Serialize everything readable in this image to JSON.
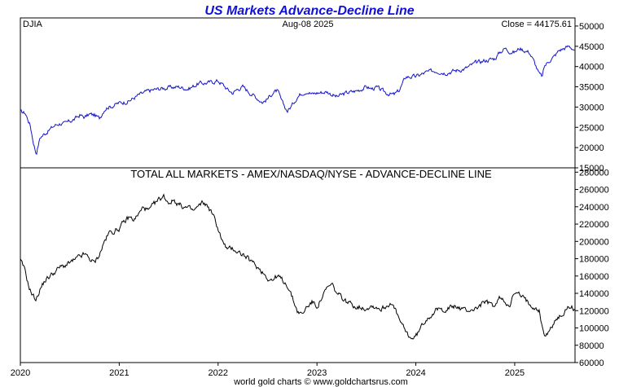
{
  "chart_data": [
    {
      "type": "line",
      "title": "US Markets Advance-Decline Line",
      "symbol": "DJIA",
      "date_label": "Aug-08  2025",
      "close_label": "Close = 44175.61",
      "line_color": "#1414c8",
      "x_range": [
        2020.0,
        2025.61
      ],
      "ylim": [
        15000,
        52000
      ],
      "yticks": [
        15000,
        20000,
        25000,
        30000,
        35000,
        40000,
        45000,
        50000
      ],
      "series": [
        {
          "name": "DJIA",
          "x": [
            2020.0,
            2020.05,
            2020.1,
            2020.13,
            2020.16,
            2020.2,
            2020.25,
            2020.3,
            2020.35,
            2020.4,
            2020.45,
            2020.5,
            2020.55,
            2020.6,
            2020.65,
            2020.7,
            2020.75,
            2020.8,
            2020.85,
            2020.88,
            2020.92,
            2021.0,
            2021.1,
            2021.2,
            2021.3,
            2021.4,
            2021.5,
            2021.6,
            2021.7,
            2021.8,
            2021.9,
            2022.0,
            2022.05,
            2022.1,
            2022.15,
            2022.2,
            2022.25,
            2022.3,
            2022.38,
            2022.45,
            2022.5,
            2022.55,
            2022.6,
            2022.65,
            2022.7,
            2022.75,
            2022.8,
            2022.85,
            2022.9,
            2022.95,
            2023.0,
            2023.1,
            2023.2,
            2023.3,
            2023.4,
            2023.5,
            2023.55,
            2023.6,
            2023.7,
            2023.78,
            2023.83,
            2023.9,
            2024.0,
            2024.1,
            2024.2,
            2024.3,
            2024.4,
            2024.5,
            2024.6,
            2024.7,
            2024.8,
            2024.85,
            2024.9,
            2024.95,
            2025.0,
            2025.05,
            2025.1,
            2025.15,
            2025.2,
            2025.25,
            2025.28,
            2025.3,
            2025.35,
            2025.4,
            2025.45,
            2025.5,
            2025.55,
            2025.61
          ],
          "values": [
            28800,
            28500,
            25500,
            21500,
            18500,
            22500,
            23500,
            24500,
            25500,
            26000,
            25800,
            26500,
            27000,
            28000,
            27500,
            28200,
            28000,
            27200,
            29500,
            30000,
            30200,
            31000,
            31500,
            33000,
            34000,
            34500,
            34800,
            35000,
            34500,
            35800,
            36000,
            36500,
            35500,
            34200,
            33500,
            34500,
            35000,
            34000,
            32500,
            31200,
            32000,
            33500,
            34000,
            31000,
            29000,
            30500,
            32500,
            33500,
            34000,
            33200,
            33500,
            33800,
            32500,
            33500,
            34000,
            35000,
            34500,
            34800,
            33500,
            33000,
            34000,
            37500,
            37500,
            38500,
            39000,
            38500,
            39000,
            39500,
            40800,
            41500,
            42000,
            43500,
            44500,
            43800,
            43500,
            44500,
            44000,
            43500,
            41000,
            38000,
            37500,
            40000,
            41500,
            42500,
            44000,
            44500,
            45000,
            44175
          ]
        }
      ]
    },
    {
      "type": "line",
      "title": "TOTAL ALL MARKETS - AMEX/NASDAQ/NYSE - ADVANCE-DECLINE LINE",
      "line_color": "#000000",
      "x_range": [
        2020.0,
        2025.61
      ],
      "ylim": [
        60000,
        285000
      ],
      "yticks": [
        60000,
        80000,
        100000,
        120000,
        140000,
        160000,
        180000,
        200000,
        220000,
        240000,
        260000,
        280000
      ],
      "xticks": [
        2020,
        2021,
        2022,
        2023,
        2024,
        2025
      ],
      "series": [
        {
          "name": "Advance-Decline Line",
          "x": [
            2020.0,
            2020.05,
            2020.08,
            2020.12,
            2020.16,
            2020.2,
            2020.25,
            2020.3,
            2020.35,
            2020.4,
            2020.45,
            2020.5,
            2020.55,
            2020.6,
            2020.65,
            2020.7,
            2020.75,
            2020.8,
            2020.85,
            2020.9,
            2020.95,
            2021.0,
            2021.05,
            2021.1,
            2021.15,
            2021.2,
            2021.25,
            2021.3,
            2021.35,
            2021.4,
            2021.45,
            2021.5,
            2021.55,
            2021.6,
            2021.65,
            2021.7,
            2021.75,
            2021.8,
            2021.85,
            2021.9,
            2021.95,
            2022.0,
            2022.05,
            2022.1,
            2022.15,
            2022.2,
            2022.25,
            2022.3,
            2022.35,
            2022.4,
            2022.45,
            2022.5,
            2022.55,
            2022.6,
            2022.65,
            2022.7,
            2022.75,
            2022.8,
            2022.85,
            2022.9,
            2022.95,
            2023.0,
            2023.05,
            2023.1,
            2023.15,
            2023.2,
            2023.3,
            2023.4,
            2023.5,
            2023.55,
            2023.6,
            2023.65,
            2023.7,
            2023.75,
            2023.8,
            2023.85,
            2023.9,
            2023.95,
            2024.0,
            2024.1,
            2024.2,
            2024.3,
            2024.4,
            2024.5,
            2024.6,
            2024.7,
            2024.8,
            2024.85,
            2024.9,
            2024.95,
            2025.0,
            2025.05,
            2025.1,
            2025.15,
            2025.2,
            2025.25,
            2025.27,
            2025.3,
            2025.35,
            2025.4,
            2025.45,
            2025.5,
            2025.55,
            2025.61
          ],
          "values": [
            178000,
            165000,
            150000,
            138000,
            133000,
            145000,
            155000,
            160000,
            165000,
            170000,
            172000,
            175000,
            178000,
            182000,
            185000,
            180000,
            175000,
            185000,
            200000,
            210000,
            212000,
            215000,
            222000,
            228000,
            225000,
            232000,
            240000,
            235000,
            242000,
            248000,
            252000,
            245000,
            248000,
            243000,
            240000,
            238000,
            235000,
            240000,
            245000,
            240000,
            230000,
            215000,
            198000,
            190000,
            192000,
            188000,
            185000,
            180000,
            175000,
            170000,
            165000,
            158000,
            155000,
            160000,
            155000,
            150000,
            135000,
            120000,
            115000,
            125000,
            130000,
            125000,
            135000,
            145000,
            150000,
            140000,
            130000,
            125000,
            123000,
            126000,
            124000,
            122000,
            125000,
            130000,
            118000,
            105000,
            95000,
            88000,
            90000,
            110000,
            120000,
            122000,
            125000,
            120000,
            122000,
            130000,
            125000,
            135000,
            130000,
            128000,
            140000,
            138000,
            133000,
            128000,
            125000,
            120000,
            105000,
            92000,
            95000,
            108000,
            112000,
            118000,
            125000,
            122000
          ]
        }
      ]
    }
  ],
  "footer": "world gold charts © www.goldchartsrus.com"
}
